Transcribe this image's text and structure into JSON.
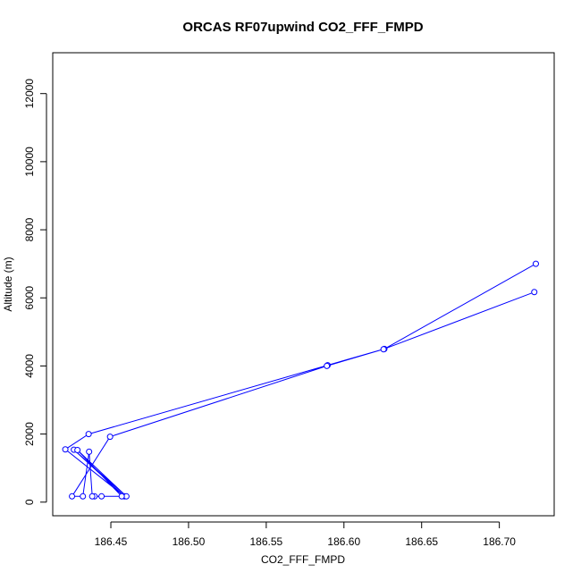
{
  "chart_data": {
    "type": "line",
    "title": "ORCAS RF07upwind CO2_FFF_FMPD",
    "xlabel": "CO2_FFF_FMPD",
    "ylabel": "Altitude (m)",
    "xlim": [
      186.4126,
      186.7353
    ],
    "ylim": [
      -400,
      13200
    ],
    "xticks": [
      186.45,
      186.5,
      186.55,
      186.6,
      186.65,
      186.7
    ],
    "xtick_labels": [
      "186.45",
      "186.50",
      "186.55",
      "186.60",
      "186.65",
      "186.70"
    ],
    "yticks": [
      0,
      2000,
      4000,
      6000,
      8000,
      10000,
      12000
    ],
    "ytick_labels": [
      "0",
      "2000",
      "4000",
      "6000",
      "8000",
      "10000",
      "12000"
    ],
    "marker": "open-circle",
    "series": [
      {
        "points": [
          {
            "x": 186.7235,
            "y": 7000
          },
          {
            "x": 186.626,
            "y": 4500
          },
          {
            "x": 186.5895,
            "y": 4020
          },
          {
            "x": 186.4357,
            "y": 2000
          },
          {
            "x": 186.4207,
            "y": 1550
          },
          {
            "x": 186.4588,
            "y": 170
          },
          {
            "x": 186.4262,
            "y": 1540
          },
          {
            "x": 186.46,
            "y": 170
          },
          {
            "x": 186.4285,
            "y": 1530
          },
          {
            "x": 186.457,
            "y": 170
          },
          {
            "x": 186.444,
            "y": 170
          },
          {
            "x": 186.4395,
            "y": 170
          },
          {
            "x": 186.438,
            "y": 170
          },
          {
            "x": 186.436,
            "y": 1480
          },
          {
            "x": 186.432,
            "y": 170
          },
          {
            "x": 186.425,
            "y": 170
          },
          {
            "x": 186.4495,
            "y": 1920
          },
          {
            "x": 186.589,
            "y": 4000
          },
          {
            "x": 186.6255,
            "y": 4490
          },
          {
            "x": 186.7225,
            "y": 6170
          }
        ]
      }
    ],
    "colors": {
      "series": "#0000ff",
      "axis": "#000000",
      "background": "#ffffff"
    },
    "grid": false,
    "legend": "none"
  }
}
